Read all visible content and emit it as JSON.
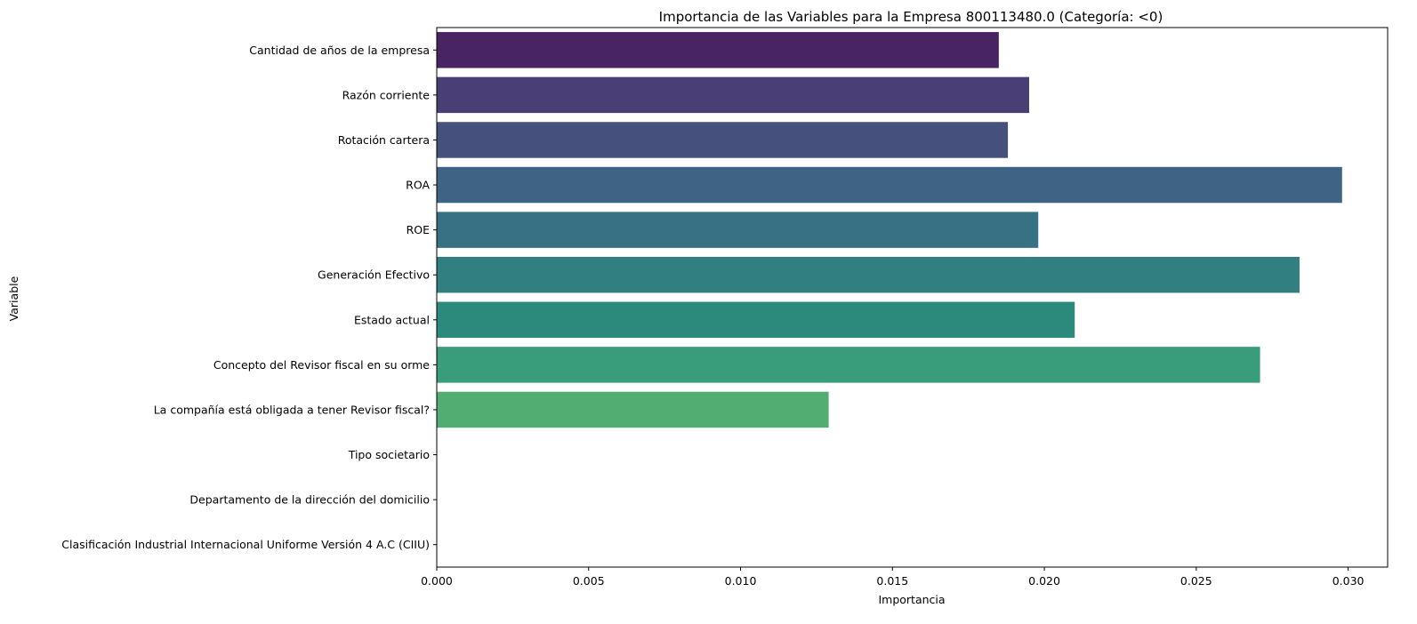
{
  "chart_data": {
    "type": "bar",
    "orientation": "horizontal",
    "title": "Importancia de las Variables para la Empresa 800113480.0 (Categoría: <0)",
    "xlabel": "Importancia",
    "ylabel": "Variable",
    "xlim": [
      0,
      0.0313
    ],
    "xticks": [
      "0.000",
      "0.005",
      "0.010",
      "0.015",
      "0.020",
      "0.025",
      "0.030"
    ],
    "xtick_values": [
      0,
      0.005,
      0.01,
      0.015,
      0.02,
      0.025,
      0.03
    ],
    "grid": false,
    "categories": [
      "Cantidad de años de la empresa",
      "Razón corriente",
      "Rotación cartera",
      "ROA",
      "ROE",
      "Generación Efectivo",
      "Estado actual",
      "Concepto del Revisor fiscal en su orme",
      "La compañía está obligada a tener Revisor fiscal?",
      "Tipo societario",
      "Departamento de la dirección del domicilio",
      "Clasificación Industrial Internacional Uniforme Versión 4 A.C (CIIU)"
    ],
    "values": [
      0.0185,
      0.0195,
      0.0188,
      0.0298,
      0.0198,
      0.0284,
      0.021,
      0.0271,
      0.0129,
      0,
      0,
      0
    ],
    "colors": [
      "#482465",
      "#4a3e77",
      "#46507d",
      "#3f6384",
      "#387183",
      "#317f80",
      "#2c8a7d",
      "#399c7b",
      "#51ad71",
      "#66bd64",
      "#8acb52",
      "#b2d63f"
    ]
  }
}
